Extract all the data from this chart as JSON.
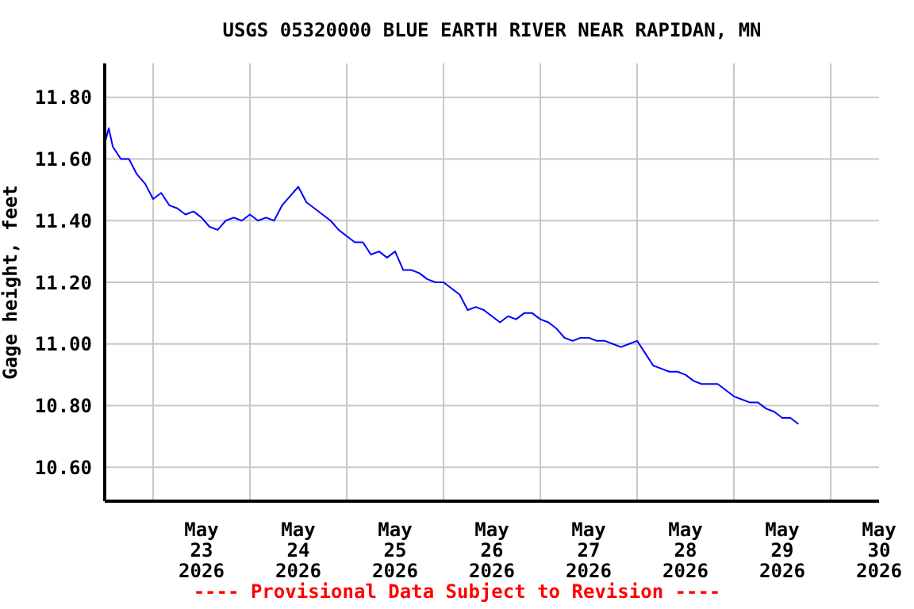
{
  "chart_data": {
    "type": "line",
    "title": "USGS 05320000 BLUE EARTH RIVER NEAR RAPIDAN, MN",
    "ylabel": "Gage height, feet",
    "annotations": [
      "---- Provisional Data Subject to Revision ----"
    ],
    "x": [
      "2026-05-22T12:00",
      "2026-05-22T13:00",
      "2026-05-22T14:00",
      "2026-05-22T16:00",
      "2026-05-22T18:00",
      "2026-05-22T20:00",
      "2026-05-22T22:00",
      "2026-05-23T00:00",
      "2026-05-23T02:00",
      "2026-05-23T04:00",
      "2026-05-23T06:00",
      "2026-05-23T08:00",
      "2026-05-23T10:00",
      "2026-05-23T12:00",
      "2026-05-23T14:00",
      "2026-05-23T16:00",
      "2026-05-23T18:00",
      "2026-05-23T20:00",
      "2026-05-23T22:00",
      "2026-05-24T00:00",
      "2026-05-24T02:00",
      "2026-05-24T04:00",
      "2026-05-24T06:00",
      "2026-05-24T08:00",
      "2026-05-24T10:00",
      "2026-05-24T12:00",
      "2026-05-24T14:00",
      "2026-05-24T16:00",
      "2026-05-24T18:00",
      "2026-05-24T20:00",
      "2026-05-24T22:00",
      "2026-05-25T00:00",
      "2026-05-25T02:00",
      "2026-05-25T04:00",
      "2026-05-25T06:00",
      "2026-05-25T08:00",
      "2026-05-25T10:00",
      "2026-05-25T12:00",
      "2026-05-25T14:00",
      "2026-05-25T16:00",
      "2026-05-25T18:00",
      "2026-05-25T20:00",
      "2026-05-25T22:00",
      "2026-05-26T00:00",
      "2026-05-26T02:00",
      "2026-05-26T04:00",
      "2026-05-26T06:00",
      "2026-05-26T08:00",
      "2026-05-26T10:00",
      "2026-05-26T12:00",
      "2026-05-26T14:00",
      "2026-05-26T16:00",
      "2026-05-26T18:00",
      "2026-05-26T20:00",
      "2026-05-26T22:00",
      "2026-05-27T00:00",
      "2026-05-27T02:00",
      "2026-05-27T04:00",
      "2026-05-27T06:00",
      "2026-05-27T08:00",
      "2026-05-27T10:00",
      "2026-05-27T12:00",
      "2026-05-27T14:00",
      "2026-05-27T16:00",
      "2026-05-27T18:00",
      "2026-05-27T20:00",
      "2026-05-27T22:00",
      "2026-05-28T00:00",
      "2026-05-28T02:00",
      "2026-05-28T04:00",
      "2026-05-28T06:00",
      "2026-05-28T08:00",
      "2026-05-28T10:00",
      "2026-05-28T12:00",
      "2026-05-28T14:00",
      "2026-05-28T16:00",
      "2026-05-28T18:00",
      "2026-05-28T20:00",
      "2026-05-28T22:00",
      "2026-05-29T00:00",
      "2026-05-29T02:00",
      "2026-05-29T04:00",
      "2026-05-29T06:00",
      "2026-05-29T08:00",
      "2026-05-29T10:00",
      "2026-05-29T12:00",
      "2026-05-29T14:00",
      "2026-05-29T16:00"
    ],
    "series": [
      {
        "color": "#0000ff",
        "values": [
          11.65,
          11.7,
          11.64,
          11.6,
          11.6,
          11.55,
          11.52,
          11.47,
          11.49,
          11.45,
          11.44,
          11.42,
          11.43,
          11.41,
          11.38,
          11.37,
          11.4,
          11.41,
          11.4,
          11.42,
          11.4,
          11.41,
          11.4,
          11.45,
          11.48,
          11.51,
          11.46,
          11.44,
          11.42,
          11.4,
          11.37,
          11.35,
          11.33,
          11.33,
          11.29,
          11.3,
          11.28,
          11.3,
          11.24,
          11.24,
          11.23,
          11.21,
          11.2,
          11.2,
          11.18,
          11.16,
          11.11,
          11.12,
          11.11,
          11.09,
          11.07,
          11.09,
          11.08,
          11.1,
          11.1,
          11.08,
          11.07,
          11.05,
          11.02,
          11.01,
          11.02,
          11.02,
          11.01,
          11.01,
          11.0,
          10.99,
          11.0,
          11.01,
          10.97,
          10.93,
          10.92,
          10.91,
          10.91,
          10.9,
          10.88,
          10.87,
          10.87,
          10.87,
          10.85,
          10.83,
          10.82,
          10.81,
          10.81,
          10.79,
          10.78,
          10.76,
          10.76,
          10.74
        ]
      }
    ],
    "xlim": [
      "2026-05-22T12:00",
      "2026-05-30T12:00"
    ],
    "xticks": [
      {
        "value": "2026-05-23T00:00",
        "label": null
      },
      {
        "value": "2026-05-23T12:00",
        "label": "May\n23\n2026"
      },
      {
        "value": "2026-05-24T00:00",
        "label": null
      },
      {
        "value": "2026-05-24T12:00",
        "label": "May\n24\n2026"
      },
      {
        "value": "2026-05-25T00:00",
        "label": null
      },
      {
        "value": "2026-05-25T12:00",
        "label": "May\n25\n2026"
      },
      {
        "value": "2026-05-26T00:00",
        "label": null
      },
      {
        "value": "2026-05-26T12:00",
        "label": "May\n26\n2026"
      },
      {
        "value": "2026-05-27T00:00",
        "label": null
      },
      {
        "value": "2026-05-27T12:00",
        "label": "May\n27\n2026"
      },
      {
        "value": "2026-05-28T00:00",
        "label": null
      },
      {
        "value": "2026-05-28T12:00",
        "label": "May\n28\n2026"
      },
      {
        "value": "2026-05-29T00:00",
        "label": null
      },
      {
        "value": "2026-05-29T12:00",
        "label": "May\n29\n2026"
      },
      {
        "value": "2026-05-30T00:00",
        "label": null
      },
      {
        "value": "2026-05-30T12:00",
        "label": "May\n30\n2026"
      }
    ],
    "ylim": [
      10.49,
      11.91
    ],
    "yticks": [
      {
        "value": 10.6,
        "label": "10.60"
      },
      {
        "value": 10.8,
        "label": "10.80"
      },
      {
        "value": 11.0,
        "label": "11.00"
      },
      {
        "value": 11.2,
        "label": "11.20"
      },
      {
        "value": 11.4,
        "label": "11.40"
      },
      {
        "value": 11.6,
        "label": "11.60"
      },
      {
        "value": 11.8,
        "label": "11.80"
      }
    ],
    "grid": true,
    "line_style": "solid",
    "marker": "none"
  }
}
